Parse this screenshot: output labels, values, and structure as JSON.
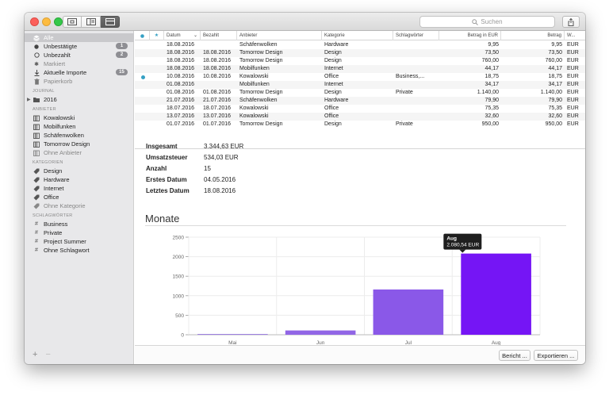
{
  "search": {
    "placeholder": "Suchen"
  },
  "sidebar": {
    "items": [
      {
        "label": "Alle",
        "icon": "stack-icon"
      },
      {
        "label": "Unbestätigte",
        "icon": "filled-dot-icon",
        "badge": "1"
      },
      {
        "label": "Unbezahlt",
        "icon": "empty-circle-icon",
        "badge": "2"
      },
      {
        "label": "Markiert",
        "icon": "asterisk-icon"
      },
      {
        "label": "Aktuelle Importe",
        "icon": "download-icon",
        "badge": "15"
      },
      {
        "label": "Papierkorb",
        "icon": "trash-icon"
      }
    ],
    "journal_header": "JOURNAL",
    "journal_items": [
      {
        "label": "2016",
        "icon": "folder-icon"
      }
    ],
    "anbieter_header": "ANBIETER",
    "anbieter_items": [
      {
        "label": "Kowalowski"
      },
      {
        "label": "Mobilfunken"
      },
      {
        "label": "Schäfenwolken"
      },
      {
        "label": "Tomorrow Design"
      },
      {
        "label": "Ohne Anbieter"
      }
    ],
    "kategorien_header": "KATEGORIEN",
    "kategorien_items": [
      {
        "label": "Design"
      },
      {
        "label": "Hardware"
      },
      {
        "label": "Internet"
      },
      {
        "label": "Office"
      },
      {
        "label": "Ohne Kategorie"
      }
    ],
    "schlagwoerter_header": "SCHLAGWÖRTER",
    "schlagwoerter_items": [
      {
        "label": "Business"
      },
      {
        "label": "Private"
      },
      {
        "label": "Project Summer"
      },
      {
        "label": "Ohne Schlagwort"
      }
    ],
    "add_label": "+",
    "remove_label": "−"
  },
  "table": {
    "columns": [
      "",
      "★",
      "Datum",
      "Bezahlt",
      "Anbieter",
      "Kategorie",
      "Schlagwörter",
      "Betrag in EUR",
      "Betrag",
      "W..."
    ],
    "rows": [
      {
        "dot": false,
        "datum": "18.08.2016",
        "bezahlt": "",
        "anbieter": "Schäfenwolken",
        "kategorie": "Hardware",
        "tags": "",
        "eur": "9,95",
        "betrag": "9,95",
        "w": "EUR"
      },
      {
        "dot": false,
        "datum": "18.08.2016",
        "bezahlt": "18.08.2016",
        "anbieter": "Tomorrow Design",
        "kategorie": "Design",
        "tags": "",
        "eur": "73,50",
        "betrag": "73,50",
        "w": "EUR"
      },
      {
        "dot": false,
        "datum": "18.08.2016",
        "bezahlt": "18.08.2016",
        "anbieter": "Tomorrow Design",
        "kategorie": "Design",
        "tags": "",
        "eur": "760,00",
        "betrag": "760,00",
        "w": "EUR"
      },
      {
        "dot": false,
        "datum": "18.08.2016",
        "bezahlt": "18.08.2016",
        "anbieter": "Mobilfunken",
        "kategorie": "Internet",
        "tags": "",
        "eur": "44,17",
        "betrag": "44,17",
        "w": "EUR"
      },
      {
        "dot": true,
        "datum": "10.08.2016",
        "bezahlt": "10.08.2016",
        "anbieter": "Kowalowski",
        "kategorie": "Office",
        "tags": "Business,...",
        "eur": "18,75",
        "betrag": "18,75",
        "w": "EUR"
      },
      {
        "dot": false,
        "datum": "01.08.2016",
        "bezahlt": "",
        "anbieter": "Mobilfunken",
        "kategorie": "Internet",
        "tags": "",
        "eur": "34,17",
        "betrag": "34,17",
        "w": "EUR"
      },
      {
        "dot": false,
        "datum": "01.08.2016",
        "bezahlt": "01.08.2016",
        "anbieter": "Tomorrow Design",
        "kategorie": "Design",
        "tags": "Private",
        "eur": "1.140,00",
        "betrag": "1.140,00",
        "w": "EUR"
      },
      {
        "dot": false,
        "datum": "21.07.2016",
        "bezahlt": "21.07.2016",
        "anbieter": "Schäfenwolken",
        "kategorie": "Hardware",
        "tags": "",
        "eur": "79,90",
        "betrag": "79,90",
        "w": "EUR"
      },
      {
        "dot": false,
        "datum": "18.07.2016",
        "bezahlt": "18.07.2016",
        "anbieter": "Kowalowski",
        "kategorie": "Office",
        "tags": "",
        "eur": "75,35",
        "betrag": "75,35",
        "w": "EUR"
      },
      {
        "dot": false,
        "datum": "13.07.2016",
        "bezahlt": "13.07.2016",
        "anbieter": "Kowalowski",
        "kategorie": "Office",
        "tags": "",
        "eur": "32,60",
        "betrag": "32,60",
        "w": "EUR"
      },
      {
        "dot": false,
        "datum": "01.07.2016",
        "bezahlt": "01.07.2016",
        "anbieter": "Tomorrow Design",
        "kategorie": "Design",
        "tags": "Private",
        "eur": "950,00",
        "betrag": "950,00",
        "w": "EUR"
      }
    ]
  },
  "summary": {
    "rows": [
      {
        "label": "Insgesamt",
        "value": "3.344,63 EUR"
      },
      {
        "label": "Umsatzsteuer",
        "value": "534,03 EUR"
      },
      {
        "label": "Anzahl",
        "value": "15"
      },
      {
        "label": "Erstes Datum",
        "value": "04.05.2016"
      },
      {
        "label": "Letztes Datum",
        "value": "18.08.2016"
      }
    ]
  },
  "section_title": "Monate",
  "chart_data": {
    "type": "bar",
    "categories": [
      "Mai",
      "Jun",
      "Jul",
      "Aug"
    ],
    "values": [
      20,
      110,
      1160,
      2080.54
    ],
    "ylim": [
      0,
      2500
    ],
    "yticks": [
      0,
      500,
      1000,
      1500,
      2000,
      2500
    ],
    "ytick_labels": [
      "0",
      "500",
      "1000",
      "1500",
      "2000",
      "2500"
    ],
    "colors": [
      "#9d7fe0",
      "#9166e6",
      "#8a58e8",
      "#7515f5"
    ],
    "grid": true,
    "tooltip": {
      "title": "Aug",
      "value": "2.080,54 EUR"
    }
  },
  "buttons": {
    "report": "Bericht ...",
    "export": "Exportieren ..."
  }
}
